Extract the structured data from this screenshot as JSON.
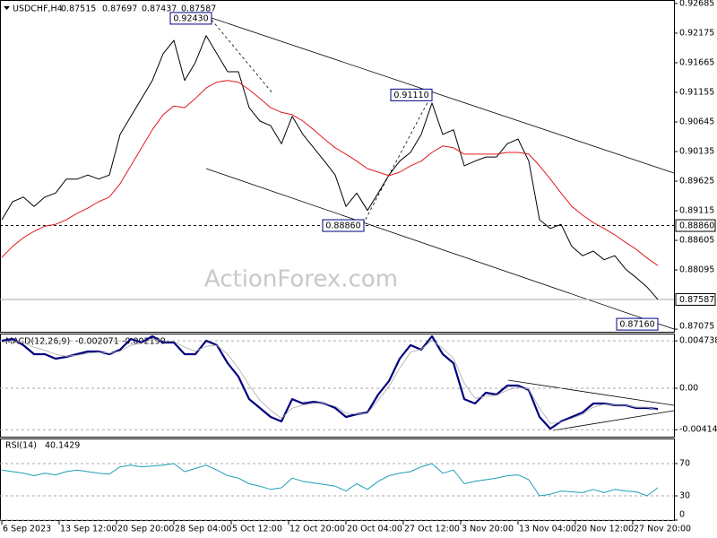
{
  "chart_data": [
    {
      "type": "line",
      "title": "USDCHF,H4",
      "last_bar": {
        "open": 0.87515,
        "high": 0.87697,
        "low": 0.87437
      },
      "watermark": "ActionForex.com",
      "x": [
        0,
        6,
        12,
        18,
        24,
        30,
        36,
        42,
        48,
        54,
        60,
        66,
        72,
        78,
        84,
        90,
        96,
        102,
        108,
        114,
        120,
        126,
        132,
        138,
        144,
        150,
        156,
        162,
        168,
        174,
        180,
        186,
        192,
        198,
        204,
        210,
        216,
        222,
        228,
        234,
        240,
        246,
        252,
        258,
        264,
        270,
        276,
        282,
        288,
        294,
        300,
        306,
        312,
        318,
        324,
        330,
        336,
        342,
        348,
        354,
        360,
        366
      ],
      "xlim": [
        -1,
        375
      ],
      "ylim": [
        0.8703,
        0.9273
      ],
      "grid": false,
      "yticks": [
        0.92685,
        0.92175,
        0.91665,
        0.91155,
        0.90645,
        0.90135,
        0.89625,
        0.89115,
        0.88605,
        0.88095,
        0.87075
      ],
      "levels": [
        {
          "value": 0.8886,
          "label": "0.88860"
        },
        {
          "value": 0.87587,
          "label": "0.87587"
        }
      ],
      "annotations": [
        {
          "x": 117,
          "value": 0.9243,
          "label": "0.92430"
        },
        {
          "x": 240,
          "value": 0.9111,
          "label": "0.91110"
        },
        {
          "x": 202,
          "value": 0.8886,
          "label": "0.88860"
        },
        {
          "x": 366,
          "value": 0.8716,
          "label": "0.87160"
        }
      ],
      "series": [
        {
          "color": "#000000",
          "values": [
            0.8896,
            0.8927,
            0.8935,
            0.8919,
            0.8935,
            0.8942,
            0.8966,
            0.8966,
            0.8973,
            0.8966,
            0.8973,
            0.9043,
            0.9074,
            0.9105,
            0.9136,
            0.9182,
            0.9205,
            0.9136,
            0.9167,
            0.9213,
            0.9182,
            0.9151,
            0.9151,
            0.9089,
            0.9066,
            0.9058,
            0.9027,
            0.9074,
            0.9043,
            0.902,
            0.8997,
            0.8973,
            0.8919,
            0.8942,
            0.8912,
            0.8942,
            0.8973,
            0.8997,
            0.9012,
            0.9043,
            0.9097,
            0.9043,
            0.9051,
            0.8989,
            0.8997,
            0.9004,
            0.9004,
            0.9027,
            0.9035,
            0.8997,
            0.8896,
            0.8881,
            0.8888,
            0.885,
            0.8834,
            0.8842,
            0.8827,
            0.8834,
            0.8811,
            0.8796,
            0.878,
            0.87587
          ]
        },
        {
          "color": "#e0191e",
          "values": [
            0.8831,
            0.885,
            0.8865,
            0.8876,
            0.8885,
            0.8888,
            0.8896,
            0.8907,
            0.8916,
            0.8927,
            0.8935,
            0.8958,
            0.8989,
            0.902,
            0.9051,
            0.9077,
            0.9092,
            0.9089,
            0.9105,
            0.9123,
            0.9133,
            0.9136,
            0.9133,
            0.912,
            0.9105,
            0.9089,
            0.9081,
            0.9077,
            0.9066,
            0.9051,
            0.9035,
            0.902,
            0.9009,
            0.8997,
            0.8984,
            0.8978,
            0.8972,
            0.8978,
            0.8989,
            0.8997,
            0.9012,
            0.9023,
            0.902,
            0.9009,
            0.9009,
            0.9009,
            0.9009,
            0.9012,
            0.9012,
            0.9009,
            0.8989,
            0.8966,
            0.8942,
            0.8919,
            0.8904,
            0.8891,
            0.8881,
            0.887,
            0.8857,
            0.8845,
            0.883,
            0.8817
          ]
        }
      ]
    },
    {
      "type": "line",
      "title": "MACD(12,26,9)",
      "x": [
        0,
        6,
        12,
        18,
        24,
        30,
        36,
        42,
        48,
        54,
        60,
        66,
        72,
        78,
        84,
        90,
        96,
        102,
        108,
        114,
        120,
        126,
        132,
        138,
        144,
        150,
        156,
        162,
        168,
        174,
        180,
        186,
        192,
        198,
        204,
        210,
        216,
        222,
        228,
        234,
        240,
        246,
        252,
        258,
        264,
        270,
        276,
        282,
        288,
        294,
        300,
        306,
        312,
        318,
        324,
        330,
        336,
        342,
        348,
        354,
        360,
        366
      ],
      "xlim": [
        -1,
        375
      ],
      "ylim": [
        -0.00484,
        0.00538
      ],
      "grid": true,
      "yticks": [
        0.004738,
        {
          "value": 0,
          "label": "0.00"
        },
        -0.004144
      ],
      "series": [
        {
          "color": "#00007f",
          "values": [
            0.00475,
            0.00493,
            0.00431,
            0.00341,
            0.00341,
            0.00296,
            0.00314,
            0.00341,
            0.00368,
            0.00368,
            0.00341,
            0.00386,
            0.00493,
            0.00457,
            0.0052,
            0.00457,
            0.00457,
            0.00341,
            0.00341,
            0.00475,
            0.00431,
            0.00251,
            0.00117,
            -0.00108,
            -0.00197,
            -0.00287,
            -0.00332,
            -0.00108,
            -0.00152,
            -0.00135,
            -0.00152,
            -0.00197,
            -0.00287,
            -0.0026,
            -0.00242,
            -0.00063,
            0.00072,
            0.00296,
            0.00431,
            0.00386,
            0.0052,
            0.00341,
            0.00251,
            -0.00108,
            -0.00152,
            -0.00045,
            -0.00063,
            0.00027,
            0.00027,
            -0.00018,
            -0.00287,
            -0.00404,
            -0.00332,
            -0.00287,
            -0.00242,
            -0.00152,
            -0.00152,
            -0.0017,
            -0.0017,
            -0.00197,
            -0.00197,
            -0.002071
          ]
        },
        {
          "color": "#a9a9a9",
          "values": [
            0.0046,
            0.0047,
            0.0046,
            0.0041,
            0.0038,
            0.0034,
            0.0032,
            0.0033,
            0.0035,
            0.0036,
            0.0035,
            0.0037,
            0.0043,
            0.0045,
            0.0049,
            0.0048,
            0.0047,
            0.0041,
            0.0037,
            0.0042,
            0.0043,
            0.0034,
            0.002,
            0.0003,
            -0.0012,
            -0.0022,
            -0.003,
            -0.002,
            -0.0017,
            -0.0015,
            -0.0015,
            -0.0018,
            -0.0025,
            -0.0026,
            -0.0025,
            -0.0012,
            0.0002,
            0.002,
            0.0036,
            0.0039,
            0.0048,
            0.004,
            0.003,
            0.0005,
            -0.001,
            -0.0008,
            -0.0007,
            -0.0002,
            0.0001,
            -0.0001,
            -0.002,
            -0.0035,
            -0.0034,
            -0.003,
            -0.0026,
            -0.0019,
            -0.0016,
            -0.0017,
            -0.0017,
            -0.0019,
            -0.0019,
            -0.002199
          ]
        }
      ]
    },
    {
      "type": "line",
      "title": "RSI(14)",
      "x": [
        0,
        6,
        12,
        18,
        24,
        30,
        36,
        42,
        48,
        54,
        60,
        66,
        72,
        78,
        84,
        90,
        96,
        102,
        108,
        114,
        120,
        126,
        132,
        138,
        144,
        150,
        156,
        162,
        168,
        174,
        180,
        186,
        192,
        198,
        204,
        210,
        216,
        222,
        228,
        234,
        240,
        246,
        252,
        258,
        264,
        270,
        276,
        282,
        288,
        294,
        300,
        306,
        312,
        318,
        324,
        330,
        336,
        342,
        348,
        354,
        360,
        366
      ],
      "xlim": [
        -1,
        375
      ],
      "ylim": [
        0,
        100
      ],
      "grid": true,
      "yticks": [
        70,
        30,
        0
      ],
      "xticks": [
        {
          "value": 0,
          "label": "6 Sep 2023"
        },
        {
          "value": 32,
          "label": "13 Sep 12:00"
        },
        {
          "value": 64,
          "label": "20 Sep 20:00"
        },
        {
          "value": 96,
          "label": "28 Sep 04:00"
        },
        {
          "value": 128,
          "label": "5 Oct 12:00"
        },
        {
          "value": 160,
          "label": "12 Oct 20:00"
        },
        {
          "value": 192,
          "label": "20 Oct 04:00"
        },
        {
          "value": 224,
          "label": "27 Oct 12:00"
        },
        {
          "value": 256,
          "label": "3 Nov 20:00"
        },
        {
          "value": 288,
          "label": "13 Nov 04:00"
        },
        {
          "value": 320,
          "label": "20 Nov 12:00"
        },
        {
          "value": 352,
          "label": "27 Nov 20:00"
        }
      ],
      "series": [
        {
          "color": "#1e9fb4",
          "values": [
            62,
            60,
            58,
            55,
            58,
            56,
            60,
            62,
            60,
            58,
            57,
            66,
            68,
            66,
            67,
            68,
            70,
            60,
            64,
            68,
            62,
            55,
            52,
            45,
            42,
            38,
            40,
            52,
            48,
            46,
            44,
            42,
            36,
            45,
            38,
            48,
            55,
            58,
            60,
            66,
            70,
            58,
            62,
            45,
            48,
            50,
            52,
            55,
            56,
            50,
            30,
            32,
            36,
            35,
            34,
            38,
            34,
            38,
            36,
            35,
            30,
            40.1429
          ]
        }
      ]
    }
  ]
}
